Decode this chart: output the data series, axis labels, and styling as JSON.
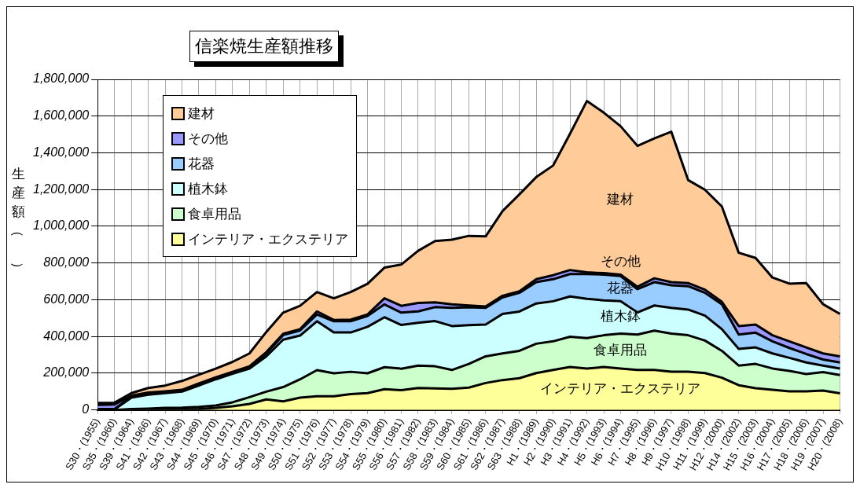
{
  "chart_data": {
    "type": "area",
    "title": "信楽焼生産額推移",
    "ylabel": "生産額（　）",
    "categories": [
      "S30・(1955)",
      "S35・(1960)",
      "S39・(1964)",
      "S41・(1966)",
      "S42・(1967)",
      "S43・(1968)",
      "S44・(1969)",
      "S45・(1970)",
      "S46・(1971)",
      "S47・(1972)",
      "S48・(1973)",
      "S49・(1974)",
      "S50・(1975)",
      "S51・(1976)",
      "S52・(1977)",
      "S53・(1978)",
      "S54・(1979)",
      "S55・(1980)",
      "S56・(1981)",
      "S57・(1982)",
      "S58・(1983)",
      "S59・(1984)",
      "S60・(1985)",
      "S61・(1986)",
      "S62・(1987)",
      "S63・(1988)",
      "H1・(1989)",
      "H2・(1990)",
      "H3・(1991)",
      "H4・(1992)",
      "H5・(1993)",
      "H6・(1994)",
      "H7・(1995)",
      "H8・(1996)",
      "H9・(1997)",
      "H10・(1998)",
      "H11・(1999)",
      "H12・(2000)",
      "H14・(2002)",
      "H15・(2003)",
      "H16・(2004)",
      "H17・(2005)",
      "H18・(2006)",
      "H19・(2007)",
      "H20・(2008)"
    ],
    "stacked": true,
    "ylim": [
      0,
      1800000
    ],
    "yticks": [
      0,
      {
        "value": 200000,
        "label": "200,000"
      },
      {
        "value": 400000,
        "label": "400,000"
      },
      {
        "value": 600000,
        "label": "600,000"
      },
      {
        "value": 800000,
        "label": "800,000"
      },
      {
        "value": 1000000,
        "label": "1,000,000"
      },
      {
        "value": 1200000,
        "label": "1,200,000"
      },
      {
        "value": 1400000,
        "label": "1,400,000"
      },
      {
        "value": 1600000,
        "label": "1,600,000"
      },
      {
        "value": 1800000,
        "label": "1,800,000"
      }
    ],
    "grid": true,
    "legend": "top left",
    "series": [
      {
        "name": "インテリア・エクステリア",
        "color": "#ffff99",
        "values": [
          0,
          0,
          2000,
          2000,
          2000,
          3000,
          5000,
          12000,
          20000,
          33000,
          58000,
          47000,
          67000,
          75000,
          75000,
          87000,
          92000,
          113000,
          108000,
          120000,
          118000,
          115000,
          122000,
          147000,
          163000,
          173000,
          201000,
          218000,
          234000,
          226000,
          234000,
          226000,
          218000,
          218000,
          209000,
          209000,
          201000,
          176000,
          135000,
          119000,
          110000,
          102000,
          102000,
          106000,
          91000
        ]
      },
      {
        "name": "食卓用品",
        "color": "#ccffcc",
        "values": [
          0,
          0,
          3000,
          6000,
          10000,
          10000,
          12000,
          13000,
          22000,
          37000,
          42000,
          78000,
          100000,
          142000,
          125000,
          121000,
          108000,
          120000,
          117000,
          122000,
          120000,
          103000,
          129000,
          145000,
          145000,
          149000,
          160000,
          156000,
          165000,
          165000,
          173000,
          190000,
          193000,
          214000,
          207000,
          198000,
          177000,
          146000,
          107000,
          132000,
          116000,
          111000,
          94000,
          100000,
          99000
        ]
      },
      {
        "name": "植木鉢",
        "color": "#ccffff",
        "values": [
          3000,
          3000,
          62000,
          75000,
          80000,
          87000,
          116000,
          142000,
          155000,
          155000,
          192000,
          258000,
          238000,
          266000,
          222000,
          214000,
          253000,
          272000,
          238000,
          233000,
          246000,
          239000,
          211000,
          173000,
          215000,
          214000,
          219000,
          218000,
          219000,
          214000,
          190000,
          176000,
          120000,
          137000,
          140000,
          140000,
          136000,
          118000,
          91000,
          90000,
          82000,
          71000,
          63000,
          36000,
          36000
        ]
      },
      {
        "name": "花器",
        "color": "#99ccff",
        "values": [
          2000,
          2000,
          5000,
          7000,
          5000,
          5000,
          7000,
          6000,
          6000,
          7000,
          16000,
          25000,
          28000,
          37000,
          61000,
          61000,
          59000,
          70000,
          67000,
          62000,
          76000,
          99000,
          97000,
          91000,
          90000,
          102000,
          116000,
          120000,
          122000,
          135000,
          140000,
          137000,
          127000,
          127000,
          123000,
          127000,
          124000,
          135000,
          78000,
          80000,
          66000,
          54000,
          46000,
          33000,
          33000
        ]
      },
      {
        "name": "その他",
        "color": "#9999ff",
        "values": [
          23000,
          25000,
          6000,
          5000,
          5000,
          5000,
          5000,
          5000,
          5000,
          6000,
          7000,
          7000,
          7000,
          17000,
          7000,
          9000,
          8000,
          33000,
          37000,
          46000,
          26000,
          19000,
          10000,
          8000,
          9000,
          8000,
          16000,
          22000,
          22000,
          10000,
          8000,
          8000,
          13000,
          21000,
          17000,
          17000,
          17000,
          14000,
          46000,
          44000,
          33000,
          36000,
          36000,
          33000,
          33000
        ]
      },
      {
        "name": "建材",
        "color": "#ffcc99",
        "values": [
          10000,
          10000,
          14000,
          25000,
          31000,
          48000,
          47000,
          47000,
          54000,
          70000,
          110000,
          115000,
          127000,
          105000,
          118000,
          150000,
          167000,
          167000,
          225000,
          284000,
          334000,
          352000,
          379000,
          381000,
          461000,
          528000,
          556000,
          597000,
          742000,
          932000,
          874000,
          808000,
          767000,
          762000,
          819000,
          561000,
          544000,
          519000,
          399000,
          363000,
          314000,
          314000,
          350000,
          268000,
          231000
        ]
      }
    ]
  }
}
